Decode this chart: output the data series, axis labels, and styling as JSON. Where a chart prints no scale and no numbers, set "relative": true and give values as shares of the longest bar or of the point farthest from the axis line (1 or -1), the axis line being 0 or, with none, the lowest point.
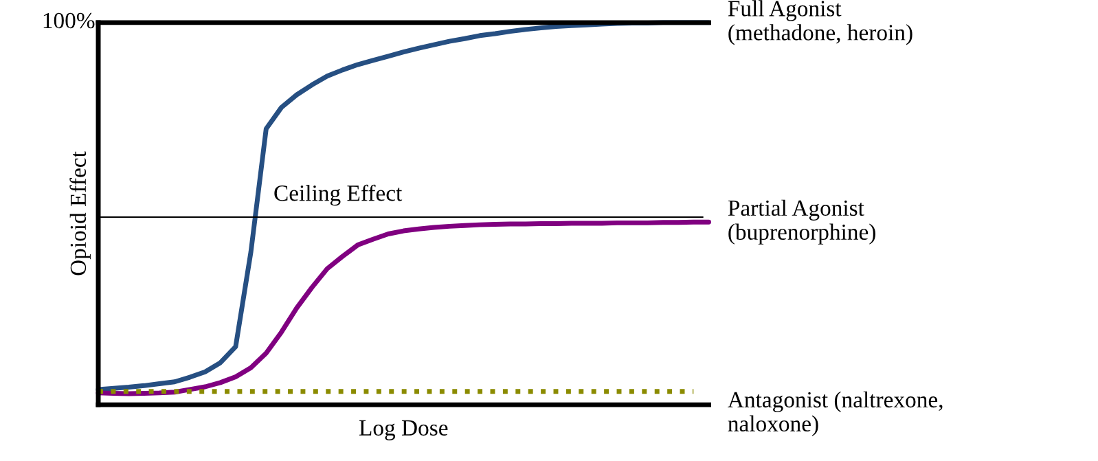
{
  "chart_data": {
    "type": "line",
    "relative": true,
    "xlabel": "Log Dose",
    "ylabel": "Opioid Effect",
    "legend": false,
    "marker": "none",
    "categories": [
      null,
      null,
      null,
      null,
      null,
      null,
      null,
      null,
      null,
      null,
      null,
      null,
      null,
      null,
      null,
      null,
      null,
      null,
      null,
      null,
      null,
      null,
      null,
      null,
      null,
      null,
      null,
      null,
      null,
      null,
      null,
      null,
      null,
      null,
      null,
      null,
      null,
      null,
      null,
      null,
      null
    ],
    "annotations": [
      "100%"
    ],
    "ref_lines": [
      {
        "axis": "y",
        "value": 0.491,
        "label": "Ceiling Effect",
        "color": "#000000",
        "line_style": "solid"
      }
    ],
    "series": [
      {
        "name": "Full Agonist\n(methadone, heroin)",
        "color": "#264f82",
        "line_style": "solid",
        "values": [
          0.04,
          0.043,
          0.046,
          0.05,
          0.055,
          0.06,
          0.072,
          0.086,
          0.11,
          0.152,
          0.4,
          0.722,
          0.778,
          0.811,
          0.837,
          0.86,
          0.876,
          0.89,
          0.901,
          0.912,
          0.923,
          0.933,
          0.942,
          0.951,
          0.958,
          0.966,
          0.971,
          0.977,
          0.982,
          0.986,
          0.99,
          0.992,
          0.994,
          0.996,
          0.998,
          0.999,
          0.999,
          1.0,
          1.0,
          1.0,
          1.0
        ]
      },
      {
        "name": "Partial Agonist\n(buprenorphine)",
        "color": "#800080",
        "line_style": "solid",
        "values": [
          0.031,
          0.03,
          0.029,
          0.03,
          0.031,
          0.033,
          0.04,
          0.047,
          0.058,
          0.073,
          0.097,
          0.135,
          0.19,
          0.253,
          0.307,
          0.356,
          0.388,
          0.418,
          0.433,
          0.447,
          0.455,
          0.46,
          0.464,
          0.467,
          0.469,
          0.471,
          0.472,
          0.473,
          0.473,
          0.474,
          0.474,
          0.475,
          0.475,
          0.475,
          0.476,
          0.476,
          0.476,
          0.477,
          0.477,
          0.478,
          0.478
        ]
      },
      {
        "name": "Antagonist (naltrexone,\nnaloxone)",
        "color": "#8b8b00",
        "line_style": "dotted",
        "values": [
          0.035,
          0.035,
          0.035,
          0.035,
          0.035,
          0.035,
          0.035,
          0.035,
          0.035,
          0.035,
          0.035,
          0.035,
          0.035,
          0.035,
          0.035,
          0.035,
          0.035,
          0.035,
          0.035,
          0.035,
          0.035,
          0.035,
          0.035,
          0.035,
          0.035,
          0.035,
          0.035,
          0.035,
          0.035,
          0.035,
          0.035,
          0.035,
          0.035,
          0.035,
          0.035,
          0.035,
          0.035,
          0.035,
          0.035,
          0.035,
          null
        ]
      }
    ]
  }
}
